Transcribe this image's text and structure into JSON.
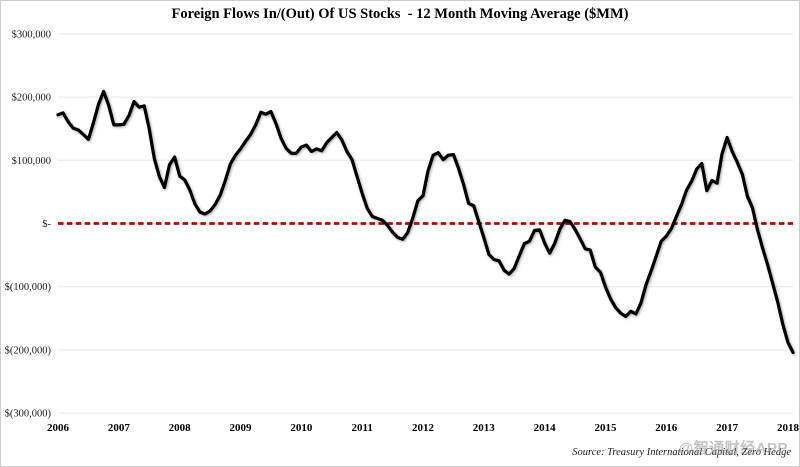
{
  "title": "Foreign Flows In/(Out) Of US Stocks  - 12 Month Moving Average ($MM)",
  "source": "Source: Treasury International Capital, Zero Hedge",
  "watermark": "@智通财经APP",
  "colors": {
    "line": "#000000",
    "zero_line": "#c00000",
    "gridline": "#e7e7e5",
    "axis_text": "#1a1a1a",
    "background": "#ffffff",
    "frame": "#cdcdcd",
    "watermark": "#8f9499"
  },
  "chart_data": {
    "type": "line",
    "title": "Foreign Flows In/(Out) Of US Stocks - 12 Month Moving Average ($MM)",
    "xlabel": "",
    "ylabel": "",
    "grid": "horizontal",
    "legend": "none",
    "ylim": [
      -300000,
      300000
    ],
    "y_ticks": [
      {
        "value": 300000,
        "label": "$300,000"
      },
      {
        "value": 200000,
        "label": "$200,000"
      },
      {
        "value": 100000,
        "label": "$100,000"
      },
      {
        "value": 0,
        "label": "$-"
      },
      {
        "value": -100000,
        "label": "$(100,000)"
      },
      {
        "value": -200000,
        "label": "$(200,000)"
      },
      {
        "value": -300000,
        "label": "$(300,000)"
      }
    ],
    "x_tick_labels": [
      "2006",
      "2007",
      "2008",
      "2009",
      "2010",
      "2011",
      "2012",
      "2013",
      "2014",
      "2015",
      "2016",
      "2017",
      "2018"
    ],
    "zero_reference_line": {
      "show": true,
      "value": 0,
      "style": "dashed",
      "color": "#c00000"
    },
    "frequency": "monthly",
    "x_start": "2006-01",
    "x_end": "2018-02",
    "series": [
      {
        "name": "Foreign flows into US stocks, 12-month moving average ($MM)",
        "color": "#000000",
        "values": [
          172000,
          175000,
          161000,
          151000,
          148000,
          141000,
          133000,
          160000,
          189000,
          209000,
          187000,
          156000,
          156000,
          157000,
          171000,
          193000,
          184000,
          186000,
          150000,
          103000,
          74000,
          57000,
          93000,
          105000,
          75000,
          69000,
          53000,
          31000,
          18000,
          15000,
          20000,
          30000,
          45000,
          68000,
          94000,
          108000,
          118000,
          130000,
          141000,
          156000,
          176000,
          173000,
          177000,
          158000,
          135000,
          119000,
          111000,
          111000,
          121000,
          124000,
          114000,
          118000,
          115000,
          128000,
          136000,
          144000,
          132000,
          114000,
          101000,
          74000,
          48000,
          24000,
          11000,
          8000,
          5000,
          -3000,
          -14000,
          -22000,
          -25000,
          -14000,
          9000,
          36000,
          44000,
          83000,
          108000,
          112000,
          101000,
          108000,
          109000,
          88000,
          62000,
          32000,
          28000,
          3000,
          -22000,
          -49000,
          -57000,
          -59000,
          -74000,
          -80000,
          -71000,
          -51000,
          -32000,
          -28000,
          -11000,
          -10000,
          -31000,
          -47000,
          -31000,
          -9000,
          5000,
          3000,
          -9000,
          -24000,
          -40000,
          -42000,
          -69000,
          -77000,
          -100000,
          -119000,
          -133000,
          -142000,
          -147000,
          -139000,
          -143000,
          -126000,
          -97000,
          -75000,
          -52000,
          -28000,
          -20000,
          -8000,
          11000,
          30000,
          53000,
          67000,
          86000,
          95000,
          52000,
          68000,
          64000,
          110000,
          136000,
          114000,
          97000,
          78000,
          43000,
          25000,
          -10000,
          -39000,
          -66000,
          -95000,
          -125000,
          -160000,
          -188000,
          -204000
        ]
      }
    ]
  }
}
